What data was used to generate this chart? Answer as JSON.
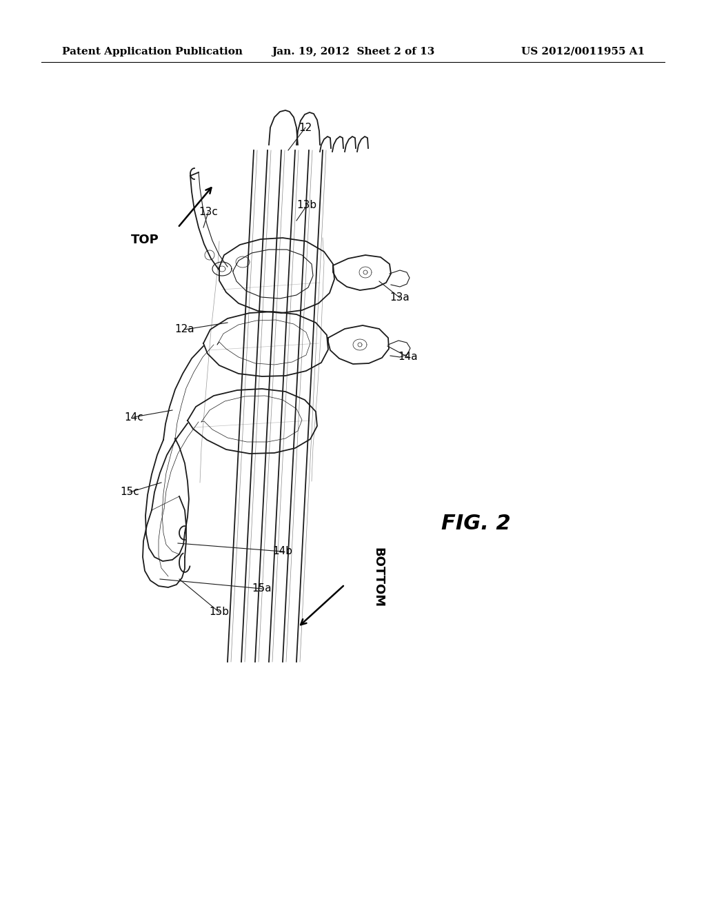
{
  "background_color": "#ffffff",
  "header_left": "Patent Application Publication",
  "header_center": "Jan. 19, 2012  Sheet 2 of 13",
  "header_right": "US 2012/0011955 A1",
  "figure_label": "FIG. 2",
  "top_label": "TOP",
  "bottom_label": "BOTTOM",
  "header_fontsize": 11,
  "figure_label_fontsize": 22,
  "annotation_fontsize": 11,
  "direction_fontsize": 13
}
